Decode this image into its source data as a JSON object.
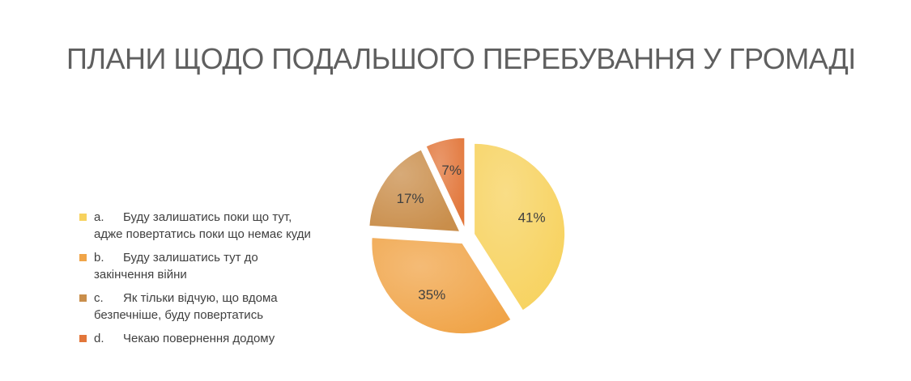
{
  "slide": {
    "title": "ПЛАНИ ЩОДО ПОДАЛЬШОГО ПЕРЕБУВАННЯ У ГРОМАДІ"
  },
  "chart_data": {
    "type": "pie",
    "title": "",
    "legend_position": "left",
    "exploded": true,
    "categories": [
      {
        "marker": "a.",
        "label": "Буду залишатись поки що тут,\nадже повертатись поки що немає куди",
        "value": 41,
        "data_label": "41%",
        "color": "#F7D25E"
      },
      {
        "marker": "b.",
        "label": "Буду залишатись тут до\nзакінчення війни",
        "value": 35,
        "data_label": "35%",
        "color": "#F0A448"
      },
      {
        "marker": "c.",
        "label": "Як тільки відчую, що вдома\nбезпечніше, буду повертатись",
        "value": 17,
        "data_label": "17%",
        "color": "#C98E4B"
      },
      {
        "marker": "d.",
        "label": "Чекаю повернення додому",
        "value": 7,
        "data_label": "7%",
        "color": "#E2763A"
      }
    ]
  }
}
